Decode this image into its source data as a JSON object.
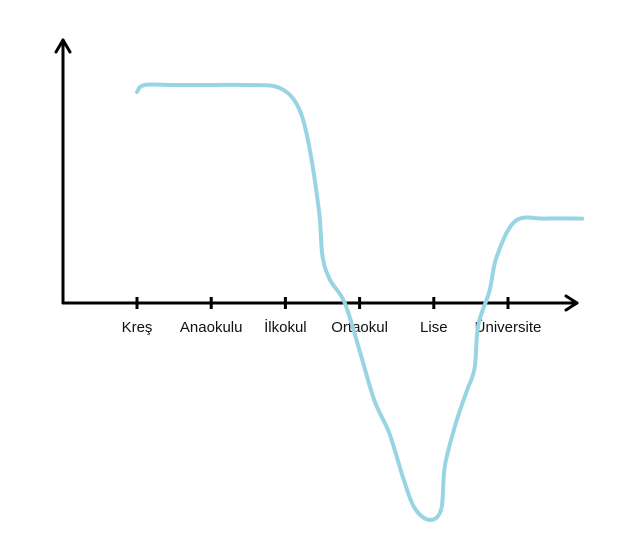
{
  "chart_data": {
    "type": "line",
    "title": "",
    "xlabel": "",
    "ylabel": "",
    "categories": [
      "Kreş",
      "Anaokulu",
      "İlkokul",
      "Ortaokul",
      "Lise",
      "Üniversite"
    ],
    "ylim": [
      -1.0,
      1.0
    ],
    "grid": false,
    "legend": "none",
    "series": [
      {
        "color": "#99d4e3",
        "points": [
          {
            "x": 0.0,
            "y": 0.9
          },
          {
            "x": 0.1,
            "y": 0.93
          },
          {
            "x": 0.5,
            "y": 0.93
          },
          {
            "x": 1.0,
            "y": 0.93
          },
          {
            "x": 1.5,
            "y": 0.93
          },
          {
            "x": 1.9,
            "y": 0.92
          },
          {
            "x": 2.15,
            "y": 0.85
          },
          {
            "x": 2.3,
            "y": 0.7
          },
          {
            "x": 2.45,
            "y": 0.4
          },
          {
            "x": 2.5,
            "y": 0.2
          },
          {
            "x": 2.6,
            "y": 0.1
          },
          {
            "x": 2.8,
            "y": 0.0
          },
          {
            "x": 3.0,
            "y": -0.22
          },
          {
            "x": 3.2,
            "y": -0.45
          },
          {
            "x": 3.4,
            "y": -0.6
          },
          {
            "x": 3.6,
            "y": -0.82
          },
          {
            "x": 3.75,
            "y": -0.95
          },
          {
            "x": 3.95,
            "y": -1.0
          },
          {
            "x": 4.1,
            "y": -0.95
          },
          {
            "x": 4.15,
            "y": -0.75
          },
          {
            "x": 4.3,
            "y": -0.55
          },
          {
            "x": 4.45,
            "y": -0.4
          },
          {
            "x": 4.55,
            "y": -0.3
          },
          {
            "x": 4.6,
            "y": -0.1
          },
          {
            "x": 4.75,
            "y": 0.05
          },
          {
            "x": 4.85,
            "y": 0.2
          },
          {
            "x": 5.1,
            "y": 0.35
          },
          {
            "x": 5.5,
            "y": 0.36
          },
          {
            "x": 6.0,
            "y": 0.36
          }
        ]
      }
    ]
  }
}
